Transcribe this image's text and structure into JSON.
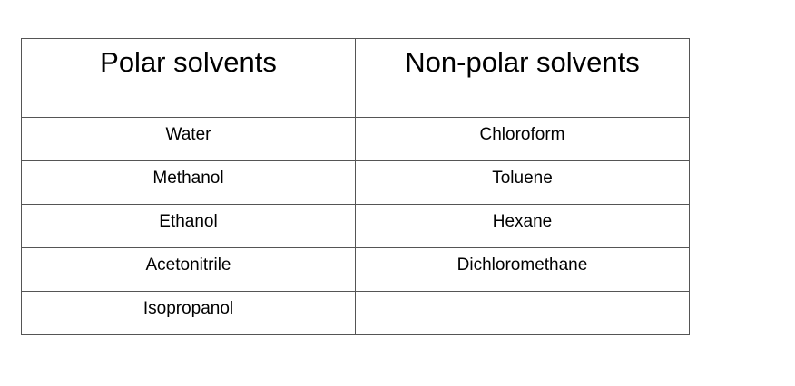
{
  "table": {
    "headers": [
      "Polar solvents",
      "Non-polar solvents"
    ],
    "rows": [
      [
        "Water",
        "Chloroform"
      ],
      [
        "Methanol",
        "Toluene"
      ],
      [
        "Ethanol",
        "Hexane"
      ],
      [
        "Acetonitrile",
        "Dichloromethane"
      ],
      [
        "Isopropanol",
        ""
      ]
    ]
  }
}
